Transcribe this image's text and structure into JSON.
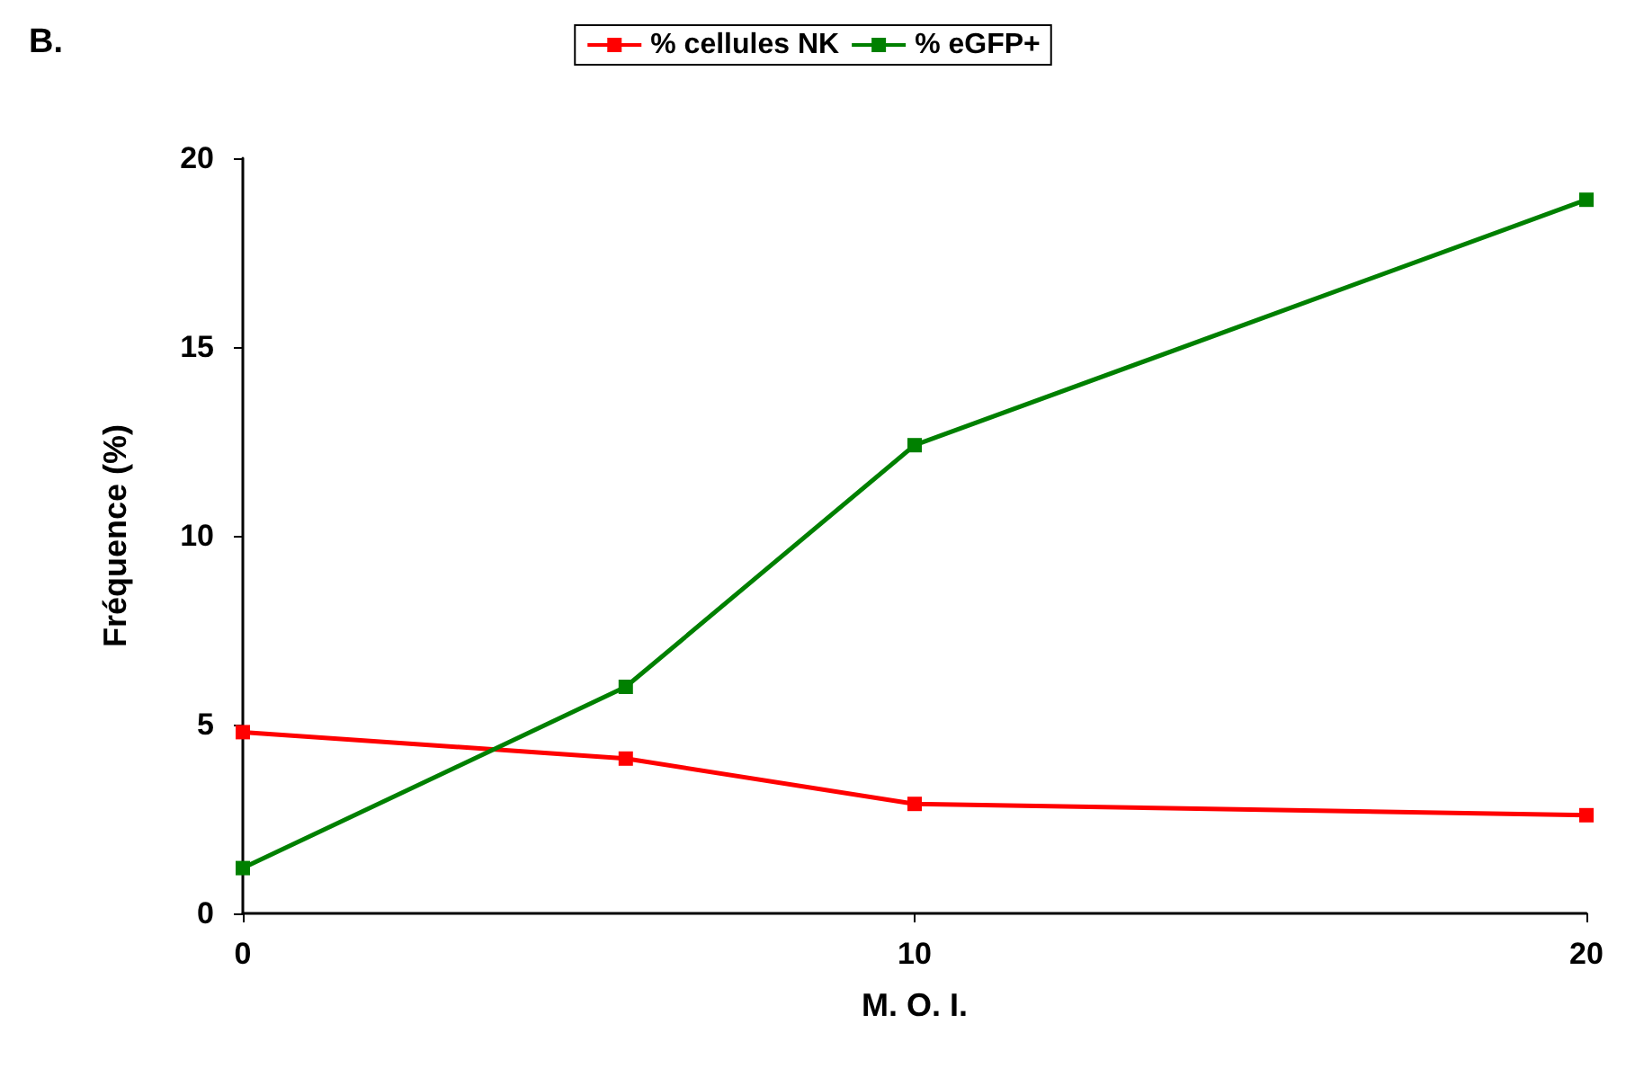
{
  "chart_data": {
    "type": "line",
    "annotations": [
      "B."
    ],
    "xlabel": "M. O. I.",
    "ylabel": "Fréquence (%)",
    "x": [
      0,
      5.7,
      10,
      20
    ],
    "series": [
      {
        "name": "% cellules NK",
        "color": "#ff0000",
        "values": [
          4.8,
          4.1,
          2.9,
          2.6
        ]
      },
      {
        "name": "% eGFP+",
        "color": "#008000",
        "values": [
          1.2,
          6.0,
          12.4,
          18.9
        ]
      }
    ],
    "xlim": [
      0,
      20
    ],
    "xticks": [
      0,
      10,
      20
    ],
    "ylim": [
      0,
      20
    ],
    "yticks": [
      0,
      5,
      10,
      15,
      20
    ],
    "grid": false,
    "legend": "top",
    "marker": "square",
    "line_style": "solid"
  }
}
